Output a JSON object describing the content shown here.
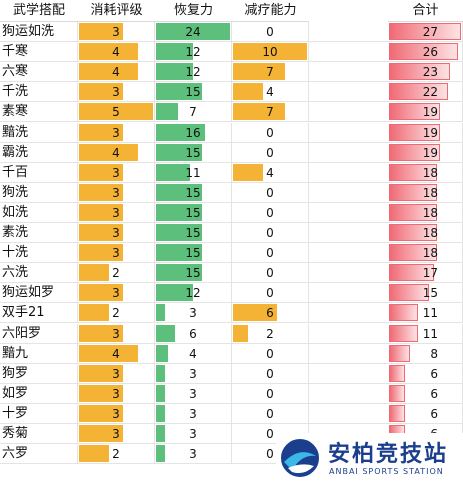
{
  "chart_data": {
    "type": "table",
    "columns": [
      "武学搭配",
      "消耗评级",
      "恢复力",
      "减疗能力",
      "合计"
    ],
    "rows": [
      {
        "name": "狗运如洗",
        "cost": 3,
        "recover": 24,
        "heal_cut": 0,
        "total": 27
      },
      {
        "name": "千寒",
        "cost": 4,
        "recover": 12,
        "heal_cut": 10,
        "total": 26
      },
      {
        "name": "六寒",
        "cost": 4,
        "recover": 12,
        "heal_cut": 7,
        "total": 23
      },
      {
        "name": "千洗",
        "cost": 3,
        "recover": 15,
        "heal_cut": 4,
        "total": 22
      },
      {
        "name": "素寒",
        "cost": 5,
        "recover": 7,
        "heal_cut": 7,
        "total": 19
      },
      {
        "name": "黯洗",
        "cost": 3,
        "recover": 16,
        "heal_cut": 0,
        "total": 19
      },
      {
        "name": "霸洗",
        "cost": 4,
        "recover": 15,
        "heal_cut": 0,
        "total": 19
      },
      {
        "name": "千百",
        "cost": 3,
        "recover": 11,
        "heal_cut": 4,
        "total": 18
      },
      {
        "name": "狗洗",
        "cost": 3,
        "recover": 15,
        "heal_cut": 0,
        "total": 18
      },
      {
        "name": "如洗",
        "cost": 3,
        "recover": 15,
        "heal_cut": 0,
        "total": 18
      },
      {
        "name": "素洗",
        "cost": 3,
        "recover": 15,
        "heal_cut": 0,
        "total": 18
      },
      {
        "name": "十洗",
        "cost": 3,
        "recover": 15,
        "heal_cut": 0,
        "total": 18
      },
      {
        "name": "六洗",
        "cost": 2,
        "recover": 15,
        "heal_cut": 0,
        "total": 17
      },
      {
        "name": "狗运如罗",
        "cost": 3,
        "recover": 12,
        "heal_cut": 0,
        "total": 15
      },
      {
        "name": "双手21",
        "cost": 2,
        "recover": 3,
        "heal_cut": 6,
        "total": 11
      },
      {
        "name": "六阳罗",
        "cost": 3,
        "recover": 6,
        "heal_cut": 2,
        "total": 11
      },
      {
        "name": "黯九",
        "cost": 4,
        "recover": 4,
        "heal_cut": 0,
        "total": 8
      },
      {
        "name": "狗罗",
        "cost": 3,
        "recover": 3,
        "heal_cut": 0,
        "total": 6
      },
      {
        "name": "如罗",
        "cost": 3,
        "recover": 3,
        "heal_cut": 0,
        "total": 6
      },
      {
        "name": "十罗",
        "cost": 3,
        "recover": 3,
        "heal_cut": 0,
        "total": 6
      },
      {
        "name": "秀菊",
        "cost": 3,
        "recover": 3,
        "heal_cut": 0,
        "total": 6
      },
      {
        "name": "六罗",
        "cost": 2,
        "recover": 3,
        "heal_cut": 0,
        "total": 5
      }
    ],
    "colors": {
      "cost": "#f5b335",
      "recover": "#5cc07c",
      "heal_cut": "#f5b335",
      "total_strong": "#f06a75",
      "total_light": "#fde3e5"
    }
  },
  "logo": {
    "title": "安柏竞技站",
    "subtitle": "ANBAI SPORTS STATION"
  }
}
